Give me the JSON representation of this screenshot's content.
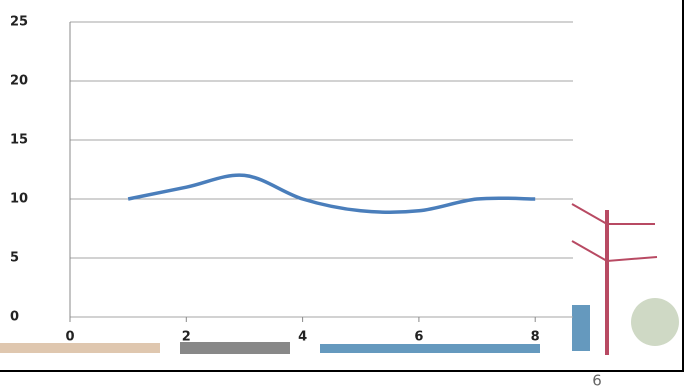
{
  "chart_data": {
    "type": "line",
    "x": [
      1,
      2,
      3,
      4,
      5,
      6,
      7,
      8
    ],
    "series": [
      {
        "color": "#4a7ebb",
        "values": [
          10,
          11,
          12,
          10,
          9,
          9,
          10,
          10
        ]
      }
    ],
    "xlim": [
      0,
      8.65
    ],
    "xticks": [
      0,
      2,
      4,
      6,
      8
    ],
    "ylim": [
      0,
      25
    ],
    "yticks": [
      0,
      5,
      10,
      15,
      20,
      25
    ],
    "grid": true,
    "smooth": true
  },
  "page_number": "6"
}
